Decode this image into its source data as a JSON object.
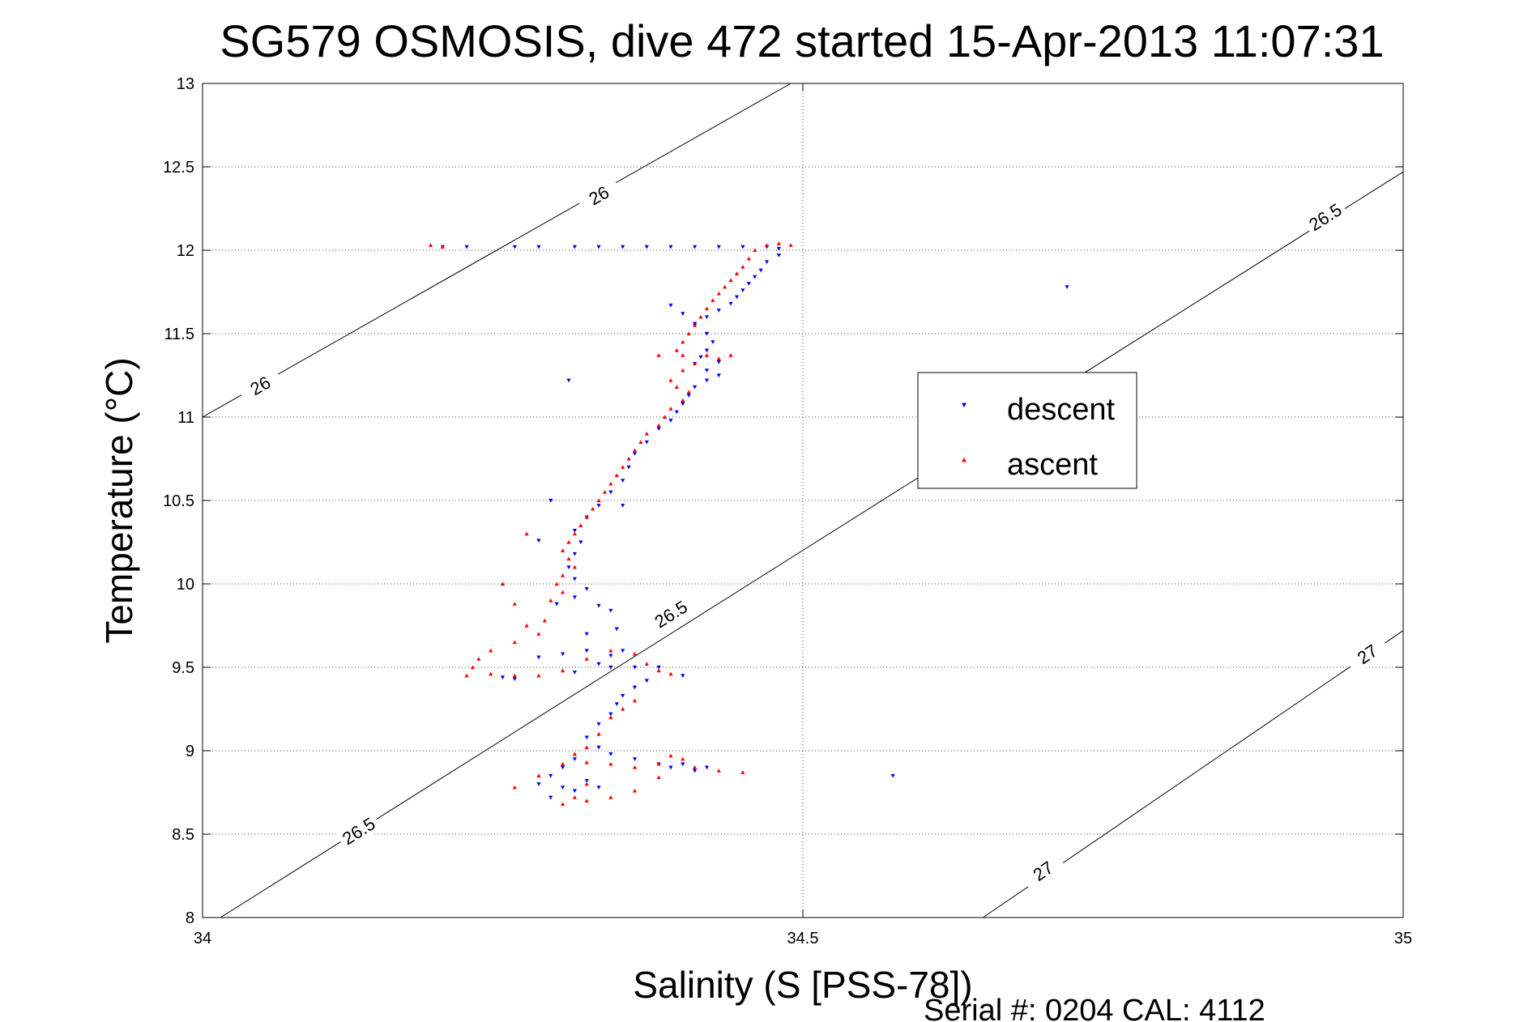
{
  "chart_data": {
    "type": "scatter",
    "title": "SG579 OSMOSIS, dive 472 started 15-Apr-2013 11:07:31",
    "xlabel": "Salinity (S [PSS-78])",
    "ylabel": "Temperature (°C)",
    "xlim": [
      34,
      35
    ],
    "ylim": [
      8,
      13
    ],
    "xticks": [
      "34",
      "34.5",
      "35"
    ],
    "yticks": [
      "8",
      "8.5",
      "9",
      "9.5",
      "10",
      "10.5",
      "11",
      "11.5",
      "12",
      "12.5",
      "13"
    ],
    "grid": true,
    "legend_position": "right",
    "footer": "Serial #: 0204  CAL: 4112",
    "density_contours": [
      {
        "label": "26",
        "points": [
          [
            34.0,
            11.0
          ],
          [
            34.49,
            13.0
          ]
        ],
        "label_positions": [
          [
            34.048,
            11.19
          ],
          [
            34.33,
            12.33
          ]
        ]
      },
      {
        "label": "26.5",
        "points": [
          [
            34.015,
            8.0
          ],
          [
            35.0,
            12.47
          ]
        ],
        "label_positions": [
          [
            34.13,
            8.52
          ],
          [
            34.39,
            9.82
          ],
          [
            34.935,
            12.2
          ]
        ]
      },
      {
        "label": "27",
        "points": [
          [
            34.65,
            8.0
          ],
          [
            35.0,
            9.72
          ]
        ],
        "label_positions": [
          [
            34.7,
            8.28
          ],
          [
            34.97,
            9.58
          ]
        ]
      }
    ],
    "series": [
      {
        "name": "descent",
        "marker": "triangle-down",
        "color": "#0000ff",
        "points": [
          [
            34.47,
            12.02
          ],
          [
            34.45,
            12.02
          ],
          [
            34.43,
            12.02
          ],
          [
            34.41,
            12.02
          ],
          [
            34.39,
            12.02
          ],
          [
            34.37,
            12.02
          ],
          [
            34.35,
            12.02
          ],
          [
            34.33,
            12.02
          ],
          [
            34.31,
            12.02
          ],
          [
            34.28,
            12.02
          ],
          [
            34.26,
            12.02
          ],
          [
            34.22,
            12.02
          ],
          [
            34.2,
            12.02
          ],
          [
            34.48,
            12.01
          ],
          [
            34.48,
            11.97
          ],
          [
            34.47,
            11.93
          ],
          [
            34.465,
            11.88
          ],
          [
            34.46,
            11.84
          ],
          [
            34.455,
            11.8
          ],
          [
            34.45,
            11.76
          ],
          [
            34.445,
            11.72
          ],
          [
            34.44,
            11.68
          ],
          [
            34.43,
            11.64
          ],
          [
            34.42,
            11.6
          ],
          [
            34.41,
            11.56
          ],
          [
            34.39,
            11.67
          ],
          [
            34.4,
            11.62
          ],
          [
            34.41,
            11.55
          ],
          [
            34.42,
            11.5
          ],
          [
            34.425,
            11.45
          ],
          [
            34.42,
            11.4
          ],
          [
            34.415,
            11.36
          ],
          [
            34.41,
            11.32
          ],
          [
            34.42,
            11.28
          ],
          [
            34.43,
            11.33
          ],
          [
            34.43,
            11.25
          ],
          [
            34.42,
            11.22
          ],
          [
            34.41,
            11.18
          ],
          [
            34.405,
            11.13
          ],
          [
            34.4,
            11.08
          ],
          [
            34.395,
            11.03
          ],
          [
            34.39,
            10.98
          ],
          [
            34.38,
            10.93
          ],
          [
            34.37,
            10.85
          ],
          [
            34.36,
            10.78
          ],
          [
            34.355,
            10.7
          ],
          [
            34.35,
            10.62
          ],
          [
            34.34,
            10.55
          ],
          [
            34.33,
            10.47
          ],
          [
            34.35,
            10.47
          ],
          [
            34.32,
            10.4
          ],
          [
            34.31,
            10.32
          ],
          [
            34.315,
            10.25
          ],
          [
            34.31,
            10.18
          ],
          [
            34.305,
            10.1
          ],
          [
            34.31,
            10.03
          ],
          [
            34.32,
            9.97
          ],
          [
            34.33,
            9.87
          ],
          [
            34.34,
            9.84
          ],
          [
            34.31,
            9.92
          ],
          [
            34.295,
            9.88
          ],
          [
            34.29,
            10.5
          ],
          [
            34.28,
            10.26
          ],
          [
            34.305,
            11.22
          ],
          [
            34.345,
            9.73
          ],
          [
            34.32,
            9.7
          ],
          [
            34.35,
            9.6
          ],
          [
            34.34,
            9.57
          ],
          [
            34.33,
            9.52
          ],
          [
            34.34,
            9.5
          ],
          [
            34.36,
            9.5
          ],
          [
            34.38,
            9.5
          ],
          [
            34.4,
            9.45
          ],
          [
            34.37,
            9.42
          ],
          [
            34.36,
            9.38
          ],
          [
            34.35,
            9.33
          ],
          [
            34.345,
            9.28
          ],
          [
            34.34,
            9.22
          ],
          [
            34.33,
            9.16
          ],
          [
            34.25,
            9.44
          ],
          [
            34.26,
            9.43
          ],
          [
            34.28,
            9.56
          ],
          [
            34.3,
            9.58
          ],
          [
            34.32,
            9.6
          ],
          [
            34.31,
            9.47
          ],
          [
            34.32,
            9.08
          ],
          [
            34.33,
            9.02
          ],
          [
            34.34,
            8.98
          ],
          [
            34.36,
            8.95
          ],
          [
            34.38,
            8.92
          ],
          [
            34.4,
            8.92
          ],
          [
            34.42,
            8.9
          ],
          [
            34.41,
            8.88
          ],
          [
            34.39,
            8.9
          ],
          [
            34.31,
            8.95
          ],
          [
            34.3,
            8.9
          ],
          [
            34.29,
            8.85
          ],
          [
            34.28,
            8.8
          ],
          [
            34.3,
            8.78
          ],
          [
            34.29,
            8.72
          ],
          [
            34.31,
            8.76
          ],
          [
            34.32,
            8.82
          ],
          [
            34.33,
            8.78
          ],
          [
            34.575,
            8.85
          ],
          [
            34.72,
            11.78
          ]
        ]
      },
      {
        "name": "ascent",
        "marker": "triangle-up",
        "color": "#ff0000",
        "points": [
          [
            34.49,
            12.03
          ],
          [
            34.48,
            12.04
          ],
          [
            34.47,
            12.03
          ],
          [
            34.46,
            12.0
          ],
          [
            34.455,
            11.95
          ],
          [
            34.45,
            11.9
          ],
          [
            34.445,
            11.86
          ],
          [
            34.44,
            11.82
          ],
          [
            34.435,
            11.78
          ],
          [
            34.43,
            11.74
          ],
          [
            34.425,
            11.7
          ],
          [
            34.42,
            11.65
          ],
          [
            34.415,
            11.6
          ],
          [
            34.41,
            11.55
          ],
          [
            34.405,
            11.5
          ],
          [
            34.4,
            11.45
          ],
          [
            34.395,
            11.4
          ],
          [
            34.38,
            11.37
          ],
          [
            34.4,
            11.37
          ],
          [
            34.42,
            11.37
          ],
          [
            34.44,
            11.37
          ],
          [
            34.43,
            11.35
          ],
          [
            34.41,
            11.32
          ],
          [
            34.4,
            11.28
          ],
          [
            34.39,
            11.22
          ],
          [
            34.395,
            11.18
          ],
          [
            34.405,
            11.15
          ],
          [
            34.4,
            11.1
          ],
          [
            34.39,
            11.05
          ],
          [
            34.385,
            11.0
          ],
          [
            34.38,
            10.95
          ],
          [
            34.37,
            10.9
          ],
          [
            34.365,
            10.85
          ],
          [
            34.36,
            10.8
          ],
          [
            34.355,
            10.75
          ],
          [
            34.35,
            10.7
          ],
          [
            34.345,
            10.65
          ],
          [
            34.34,
            10.6
          ],
          [
            34.335,
            10.55
          ],
          [
            34.33,
            10.5
          ],
          [
            34.325,
            10.45
          ],
          [
            34.32,
            10.4
          ],
          [
            34.315,
            10.35
          ],
          [
            34.31,
            10.3
          ],
          [
            34.305,
            10.25
          ],
          [
            34.3,
            10.2
          ],
          [
            34.305,
            10.15
          ],
          [
            34.31,
            10.1
          ],
          [
            34.3,
            10.05
          ],
          [
            34.295,
            10.0
          ],
          [
            34.3,
            9.95
          ],
          [
            34.29,
            9.9
          ],
          [
            34.285,
            9.78
          ],
          [
            34.27,
            9.75
          ],
          [
            34.28,
            9.7
          ],
          [
            34.26,
            9.65
          ],
          [
            34.24,
            9.6
          ],
          [
            34.23,
            9.55
          ],
          [
            34.225,
            9.5
          ],
          [
            34.22,
            9.45
          ],
          [
            34.24,
            9.46
          ],
          [
            34.26,
            9.45
          ],
          [
            34.28,
            9.45
          ],
          [
            34.3,
            9.48
          ],
          [
            34.32,
            9.55
          ],
          [
            34.34,
            9.6
          ],
          [
            34.36,
            9.58
          ],
          [
            34.37,
            9.52
          ],
          [
            34.38,
            9.48
          ],
          [
            34.39,
            9.46
          ],
          [
            34.36,
            9.3
          ],
          [
            34.35,
            9.25
          ],
          [
            34.34,
            9.2
          ],
          [
            34.33,
            9.1
          ],
          [
            34.32,
            9.02
          ],
          [
            34.31,
            8.98
          ],
          [
            34.3,
            8.92
          ],
          [
            34.32,
            8.93
          ],
          [
            34.34,
            8.92
          ],
          [
            34.36,
            8.9
          ],
          [
            34.38,
            8.92
          ],
          [
            34.39,
            8.97
          ],
          [
            34.4,
            8.95
          ],
          [
            34.41,
            8.9
          ],
          [
            34.43,
            8.88
          ],
          [
            34.45,
            8.87
          ],
          [
            34.32,
            8.8
          ],
          [
            34.31,
            8.72
          ],
          [
            34.3,
            8.68
          ],
          [
            34.32,
            8.7
          ],
          [
            34.34,
            8.72
          ],
          [
            34.36,
            8.76
          ],
          [
            34.38,
            8.84
          ],
          [
            34.26,
            8.78
          ],
          [
            34.28,
            8.85
          ],
          [
            34.19,
            12.03
          ],
          [
            34.2,
            12.02
          ],
          [
            34.25,
            10.0
          ],
          [
            34.27,
            10.3
          ],
          [
            34.26,
            9.88
          ]
        ]
      }
    ]
  }
}
